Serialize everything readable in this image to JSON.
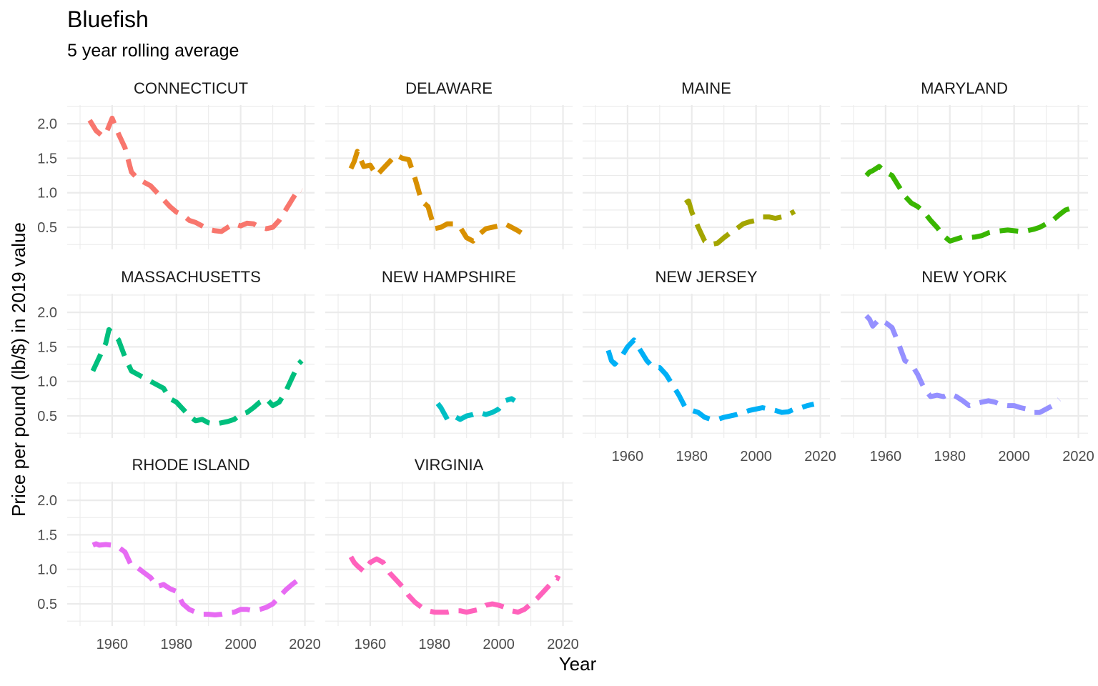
{
  "chart_data": {
    "type": "line",
    "title": "Bluefish",
    "subtitle": "5 year rolling average",
    "xlabel": "Year",
    "ylabel": "Price per pound (lb/$) in 2019 value",
    "xlim": [
      1946,
      2023
    ],
    "ylim": [
      0.18,
      2.27
    ],
    "x_ticks": [
      1960,
      1980,
      2000,
      2020
    ],
    "y_ticks": [
      0.5,
      1.0,
      1.5,
      2.0
    ],
    "y_tick_labels": [
      "0.5",
      "1.0",
      "1.5",
      "2.0"
    ],
    "grid": true,
    "legend": "none",
    "facets": [
      {
        "name": "CONNECTICUT",
        "color": "#F8766D",
        "x": [
          1953,
          1955,
          1957,
          1958,
          1960,
          1962,
          1964,
          1966,
          1968,
          1970,
          1972,
          1974,
          1976,
          1978,
          1980,
          1982,
          1984,
          1986,
          1988,
          1990,
          1992,
          1994,
          1996,
          1998,
          2000,
          2002,
          2004,
          2006,
          2008,
          2010,
          2012,
          2014,
          2016,
          2018,
          2019
        ],
        "values": [
          2.05,
          1.9,
          1.82,
          1.85,
          2.08,
          1.85,
          1.65,
          1.3,
          1.2,
          1.15,
          1.1,
          1.0,
          0.9,
          0.8,
          0.72,
          0.68,
          0.6,
          0.57,
          0.52,
          0.47,
          0.45,
          0.44,
          0.5,
          0.55,
          0.52,
          0.56,
          0.55,
          0.5,
          0.48,
          0.5,
          0.6,
          0.75,
          0.9,
          1.05,
          1.03
        ]
      },
      {
        "name": "DELAWARE",
        "color": "#D89000",
        "x": [
          1954,
          1955,
          1956,
          1958,
          1960,
          1962,
          1964,
          1966,
          1968,
          1970,
          1972,
          1974,
          1976,
          1978,
          1980,
          1982,
          1984,
          1986,
          1988,
          1990,
          1992,
          1994,
          1996,
          1998,
          2000,
          2002,
          2004,
          2006,
          2007
        ],
        "values": [
          1.35,
          1.45,
          1.6,
          1.38,
          1.4,
          1.25,
          1.35,
          1.45,
          1.55,
          1.5,
          1.48,
          1.2,
          0.88,
          0.8,
          0.48,
          0.5,
          0.55,
          0.55,
          0.5,
          0.35,
          0.3,
          0.4,
          0.48,
          0.5,
          0.52,
          0.55,
          0.5,
          0.45,
          0.42
        ]
      },
      {
        "name": "MAINE",
        "color": "#A3A500",
        "x": [
          1978,
          1979,
          1980,
          1982,
          1984,
          1986,
          1988,
          1990,
          1992,
          1994,
          1996,
          1998,
          2000,
          2002,
          2004,
          2006,
          2008,
          2010,
          2012
        ],
        "values": [
          0.85,
          0.88,
          0.72,
          0.5,
          0.3,
          0.25,
          0.27,
          0.35,
          0.42,
          0.48,
          0.55,
          0.58,
          0.6,
          0.65,
          0.65,
          0.63,
          0.65,
          0.68,
          0.73
        ]
      },
      {
        "name": "MARYLAND",
        "color": "#39B600",
        "x": [
          1954,
          1955,
          1956,
          1958,
          1960,
          1962,
          1964,
          1966,
          1968,
          1970,
          1972,
          1974,
          1976,
          1978,
          1980,
          1982,
          1984,
          1986,
          1988,
          1990,
          1992,
          1994,
          1996,
          1998,
          2000,
          2002,
          2004,
          2006,
          2008,
          2010,
          2012,
          2014,
          2016,
          2018,
          2019
        ],
        "values": [
          1.25,
          1.3,
          1.32,
          1.38,
          1.3,
          1.25,
          1.1,
          0.95,
          0.85,
          0.8,
          0.72,
          0.6,
          0.5,
          0.38,
          0.3,
          0.33,
          0.36,
          0.35,
          0.36,
          0.38,
          0.42,
          0.44,
          0.45,
          0.46,
          0.45,
          0.44,
          0.45,
          0.47,
          0.5,
          0.55,
          0.6,
          0.68,
          0.75,
          0.78,
          0.77
        ]
      },
      {
        "name": "MASSACHUSETTS",
        "color": "#00BF7D",
        "x": [
          1954,
          1956,
          1958,
          1959,
          1960,
          1962,
          1964,
          1966,
          1968,
          1970,
          1972,
          1974,
          1976,
          1978,
          1980,
          1982,
          1984,
          1986,
          1988,
          1990,
          1992,
          1994,
          1996,
          1998,
          2000,
          2002,
          2004,
          2006,
          2008,
          2010,
          2012,
          2014,
          2016,
          2018,
          2019
        ],
        "values": [
          1.15,
          1.35,
          1.55,
          1.75,
          1.7,
          1.6,
          1.35,
          1.15,
          1.1,
          1.05,
          1.0,
          0.95,
          0.9,
          0.75,
          0.7,
          0.6,
          0.5,
          0.43,
          0.45,
          0.4,
          0.38,
          0.4,
          0.42,
          0.45,
          0.52,
          0.55,
          0.62,
          0.7,
          0.75,
          0.65,
          0.7,
          0.85,
          1.05,
          1.25,
          1.3
        ]
      },
      {
        "name": "NEW HAMPSHIRE",
        "color": "#00BFC4",
        "x": [
          1981,
          1982,
          1984,
          1986,
          1988,
          1990,
          1992,
          1994,
          1996,
          1998,
          2000,
          2002,
          2004,
          2005
        ],
        "values": [
          0.68,
          0.62,
          0.45,
          0.5,
          0.45,
          0.5,
          0.52,
          0.55,
          0.52,
          0.55,
          0.6,
          0.72,
          0.75,
          0.72
        ]
      },
      {
        "name": "NEW JERSEY",
        "color": "#00B0F6",
        "x": [
          1954,
          1955,
          1956,
          1958,
          1960,
          1962,
          1964,
          1966,
          1968,
          1970,
          1972,
          1974,
          1976,
          1978,
          1980,
          1982,
          1984,
          1986,
          1988,
          1990,
          1992,
          1994,
          1996,
          1998,
          2000,
          2002,
          2004,
          2006,
          2008,
          2010,
          2012,
          2014,
          2016,
          2018
        ],
        "values": [
          1.45,
          1.3,
          1.25,
          1.35,
          1.5,
          1.6,
          1.45,
          1.3,
          1.2,
          1.2,
          1.1,
          0.95,
          0.8,
          0.62,
          0.58,
          0.55,
          0.48,
          0.45,
          0.45,
          0.48,
          0.5,
          0.52,
          0.55,
          0.58,
          0.6,
          0.62,
          0.6,
          0.58,
          0.55,
          0.56,
          0.6,
          0.62,
          0.65,
          0.67
        ]
      },
      {
        "name": "NEW YORK",
        "color": "#9590FF",
        "x": [
          1954,
          1955,
          1956,
          1958,
          1960,
          1962,
          1964,
          1966,
          1968,
          1970,
          1972,
          1974,
          1976,
          1978,
          1980,
          1982,
          1984,
          1986,
          1988,
          1990,
          1992,
          1994,
          1996,
          1998,
          2000,
          2002,
          2004,
          2006,
          2008,
          2010,
          2012,
          2014
        ],
        "values": [
          1.95,
          1.9,
          1.8,
          1.9,
          1.85,
          1.78,
          1.55,
          1.3,
          1.25,
          1.1,
          0.9,
          0.78,
          0.8,
          0.78,
          0.82,
          0.78,
          0.72,
          0.65,
          0.68,
          0.7,
          0.72,
          0.7,
          0.66,
          0.65,
          0.65,
          0.62,
          0.6,
          0.55,
          0.55,
          0.6,
          0.65,
          0.74
        ]
      },
      {
        "name": "RHODE ISLAND",
        "color": "#E76BF3",
        "x": [
          1954,
          1955,
          1956,
          1958,
          1960,
          1962,
          1964,
          1966,
          1968,
          1970,
          1972,
          1974,
          1976,
          1978,
          1980,
          1982,
          1984,
          1986,
          1988,
          1990,
          1992,
          1994,
          1996,
          1998,
          2000,
          2002,
          2004,
          2006,
          2008,
          2010,
          2012,
          2014,
          2016,
          2018,
          2019
        ],
        "values": [
          1.35,
          1.37,
          1.35,
          1.36,
          1.35,
          1.32,
          1.25,
          1.05,
          1.02,
          0.95,
          0.88,
          0.75,
          0.78,
          0.72,
          0.68,
          0.5,
          0.42,
          0.38,
          0.35,
          0.35,
          0.34,
          0.35,
          0.37,
          0.38,
          0.42,
          0.42,
          0.4,
          0.42,
          0.45,
          0.5,
          0.6,
          0.7,
          0.78,
          0.85,
          0.88
        ]
      },
      {
        "name": "VIRGINIA",
        "color": "#FF62BC",
        "x": [
          1954,
          1955,
          1956,
          1958,
          1960,
          1962,
          1964,
          1966,
          1968,
          1970,
          1972,
          1974,
          1976,
          1978,
          1980,
          1982,
          1984,
          1986,
          1988,
          1990,
          1992,
          1994,
          1996,
          1998,
          2000,
          2002,
          2004,
          2006,
          2008,
          2010,
          2012,
          2014,
          2016,
          2018,
          2019
        ],
        "values": [
          1.18,
          1.1,
          1.05,
          0.97,
          1.1,
          1.15,
          1.1,
          0.95,
          0.85,
          0.75,
          0.62,
          0.52,
          0.45,
          0.4,
          0.38,
          0.38,
          0.38,
          0.4,
          0.4,
          0.38,
          0.4,
          0.42,
          0.48,
          0.5,
          0.48,
          0.45,
          0.4,
          0.38,
          0.42,
          0.5,
          0.58,
          0.68,
          0.78,
          0.88,
          0.86
        ]
      }
    ]
  }
}
